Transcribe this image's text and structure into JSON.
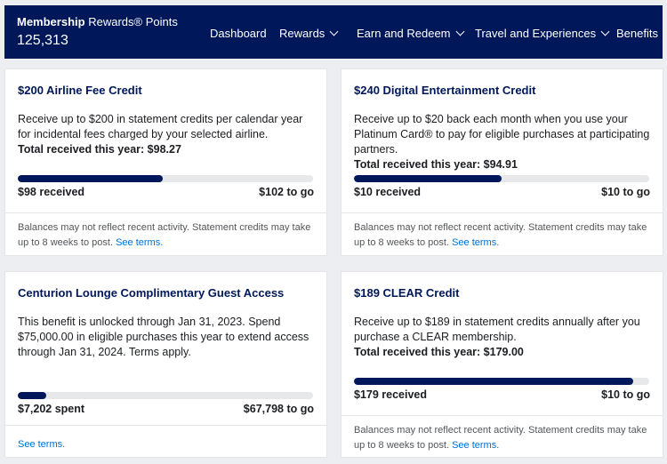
{
  "header": {
    "points_label_bold": "Membership",
    "points_label_rest": "Rewards® Points",
    "points_value": "125,313",
    "nav": [
      {
        "label": "Dashboard"
      },
      {
        "label": "Rewards"
      },
      {
        "label": "Earn and Redeem"
      },
      {
        "label": "Travel and Experiences"
      },
      {
        "label": "Benefits"
      }
    ]
  },
  "cards": [
    {
      "title": "$200 Airline Fee Credit",
      "description": "Receive up to $200 in statement credits per calendar year for incidental fees charged by your selected airline.",
      "total": "Total received this year: $98.27",
      "progress": 0.49,
      "left_amount": "$98 received",
      "right_amount": "$102 to go",
      "footer": "Balances may not reflect recent activity. Statement credits may take up to 8 weeks to post.",
      "link": "See terms."
    },
    {
      "title": "$240 Digital Entertainment Credit",
      "description": "Receive up to $20 back each month when you use your Platinum Card® to pay for eligible purchases at participating partners.",
      "total": "Total received this year: $94.91",
      "progress": 0.5,
      "left_amount": "$10 received",
      "right_amount": "$10 to go",
      "footer": "Balances may not reflect recent activity. Statement credits may take up to 8 weeks to post.",
      "link": "See terms."
    },
    {
      "title": "Centurion Lounge Complimentary Guest Access",
      "description": "This benefit is unlocked through Jan 31, 2023. Spend $75,000.00 in eligible purchases this year to extend access through Jan 31, 2024. Terms apply.",
      "total": "",
      "progress": 0.096,
      "left_amount": "$7,202 spent",
      "right_amount": "$67,798 to go",
      "footer": "",
      "link": "See terms."
    },
    {
      "title": "$189 CLEAR Credit",
      "description": "Receive up to $189 in statement credits annually after you purchase a CLEAR membership.",
      "total": "Total received this year: $179.00",
      "progress": 0.947,
      "left_amount": "$179 received",
      "right_amount": "$10 to go",
      "footer": "Balances may not reflect recent activity. Statement credits may take up to 8 weeks to post.",
      "link": "See terms."
    }
  ]
}
